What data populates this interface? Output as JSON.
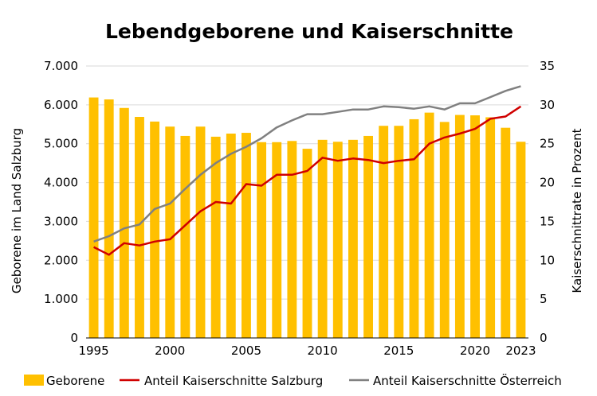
{
  "chart_data": {
    "type": "bar",
    "title": "Lebendgeborene und Kaiserschnitte",
    "ylabel_left": "Geborene im Land Salzburg",
    "ylabel_right": "Kaiserschnittrate in Prozent",
    "ylim_left": [
      0,
      7000
    ],
    "ylim_right": [
      0,
      35
    ],
    "yticks_left": [
      "0",
      "1.000",
      "2.000",
      "3.000",
      "4.000",
      "5.000",
      "6.000",
      "7.000"
    ],
    "yticks_right": [
      "0",
      "5",
      "10",
      "15",
      "20",
      "25",
      "30",
      "35"
    ],
    "xticks": [
      "1995",
      "2000",
      "2005",
      "2010",
      "2015",
      "2020",
      "2023"
    ],
    "x": [
      1995,
      1996,
      1997,
      1998,
      1999,
      2000,
      2001,
      2002,
      2003,
      2004,
      2005,
      2006,
      2007,
      2008,
      2009,
      2010,
      2011,
      2012,
      2013,
      2014,
      2015,
      2016,
      2017,
      2018,
      2019,
      2020,
      2021,
      2022,
      2023
    ],
    "grid": true,
    "legend_position": "bottom",
    "series": [
      {
        "name": "Geborene",
        "kind": "bar",
        "axis": "left",
        "color": "#FFC000",
        "values": [
          6190,
          6140,
          5920,
          5690,
          5570,
          5440,
          5200,
          5440,
          5180,
          5260,
          5280,
          5040,
          5040,
          5070,
          4870,
          5100,
          5050,
          5100,
          5200,
          5460,
          5460,
          5630,
          5800,
          5560,
          5740,
          5730,
          5680,
          5410,
          5050
        ]
      },
      {
        "name": "Anteil Kaiserschnitte Salzburg",
        "kind": "line",
        "axis": "right",
        "color": "#D00000",
        "values": [
          11.7,
          10.7,
          12.2,
          11.9,
          12.4,
          12.7,
          14.5,
          16.3,
          17.5,
          17.3,
          19.8,
          19.6,
          21.0,
          21.0,
          21.5,
          23.2,
          22.8,
          23.1,
          22.9,
          22.5,
          22.8,
          23.0,
          25.0,
          25.8,
          26.3,
          26.9,
          28.2,
          28.5,
          29.8
        ]
      },
      {
        "name": "Anteil Kaiserschnitte Österreich",
        "kind": "line",
        "axis": "right",
        "color": "#808080",
        "values": [
          12.4,
          13.1,
          14.1,
          14.6,
          16.6,
          17.3,
          19.2,
          21.0,
          22.5,
          23.7,
          24.6,
          25.7,
          27.1,
          28.0,
          28.8,
          28.8,
          29.1,
          29.4,
          29.4,
          29.8,
          29.7,
          29.5,
          29.8,
          29.4,
          30.2,
          30.2,
          31.0,
          31.8,
          32.4
        ]
      }
    ]
  }
}
